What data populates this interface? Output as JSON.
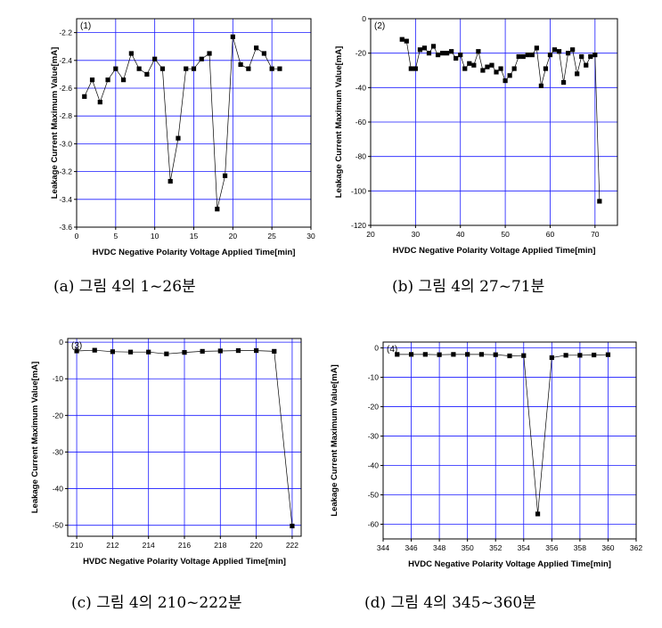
{
  "chart_data": [
    {
      "type": "line",
      "panel_label": "(1)",
      "caption": "(a) 그림 4의 1~26분",
      "xlabel": "HVDC Negative Polarity Voltage Applied Time[min]",
      "ylabel": "Leakage Current Maximum Value[mA]",
      "xlim": [
        0,
        30
      ],
      "ylim": [
        -3.6,
        -2.1
      ],
      "xticks": [
        0,
        5,
        10,
        15,
        20,
        25,
        30
      ],
      "yticks": [
        -3.6,
        -3.4,
        -3.2,
        -3.0,
        -2.8,
        -2.6,
        -2.4,
        -2.2
      ],
      "ytick_labels": [
        "-3.6",
        "-3.4",
        "-3.2",
        "-3.0",
        "-2.8",
        "-2.6",
        "-2.4",
        "-2.2"
      ],
      "x": [
        1,
        2,
        3,
        4,
        5,
        6,
        7,
        8,
        9,
        10,
        11,
        12,
        13,
        14,
        15,
        16,
        17,
        18,
        19,
        20,
        21,
        22,
        23,
        24,
        25,
        26
      ],
      "y": [
        -2.66,
        -2.54,
        -2.7,
        -2.54,
        -2.46,
        -2.54,
        -2.35,
        -2.46,
        -2.5,
        -2.39,
        -2.46,
        -3.27,
        -2.96,
        -2.46,
        -2.46,
        -2.39,
        -2.35,
        -3.47,
        -3.23,
        -2.23,
        -2.43,
        -2.46,
        -2.31,
        -2.35,
        -2.46,
        -2.46
      ],
      "grid": true
    },
    {
      "type": "line",
      "panel_label": "(2)",
      "caption": "(b) 그림 4의 27~71분",
      "xlabel": "HVDC Negative Polarity Voltage Applied Time[min]",
      "ylabel": "Leakage Current Maximum Value[mA]",
      "xlim": [
        20,
        75
      ],
      "ylim": [
        -120,
        0
      ],
      "xticks": [
        20,
        30,
        40,
        50,
        60,
        70
      ],
      "yticks": [
        -120,
        -100,
        -80,
        -60,
        -40,
        -20,
        0
      ],
      "ytick_labels": [
        "-120",
        "-100",
        "-80",
        "-60",
        "-40",
        "-20",
        "0"
      ],
      "x": [
        27,
        28,
        29,
        30,
        31,
        32,
        33,
        34,
        35,
        36,
        37,
        38,
        39,
        40,
        41,
        42,
        43,
        44,
        45,
        46,
        47,
        48,
        49,
        50,
        51,
        52,
        53,
        54,
        55,
        56,
        57,
        58,
        59,
        60,
        61,
        62,
        63,
        64,
        65,
        66,
        67,
        68,
        69,
        70,
        71
      ],
      "y": [
        -12,
        -13,
        -29,
        -29,
        -18,
        -17,
        -20,
        -16,
        -21,
        -20,
        -20,
        -19,
        -23,
        -21,
        -29,
        -26,
        -27,
        -19,
        -30,
        -28,
        -27,
        -31,
        -29,
        -36,
        -33,
        -29,
        -22,
        -22,
        -21,
        -21,
        -17,
        -39,
        -29,
        -21,
        -18,
        -19,
        -37,
        -20,
        -18,
        -32,
        -22,
        -27,
        -22,
        -21,
        -106
      ],
      "grid": true
    },
    {
      "type": "line",
      "panel_label": "(3)",
      "caption": "(c) 그림 4의 210~222분",
      "xlabel": "HVDC Negative Polarity Voltage Applied Time[min]",
      "ylabel": "Leakage Current Maximum Value[mA]",
      "xlim": [
        209.5,
        222.5
      ],
      "ylim": [
        -53,
        1
      ],
      "xticks": [
        210,
        212,
        214,
        216,
        218,
        220,
        222
      ],
      "yticks": [
        -50,
        -40,
        -30,
        -20,
        -10,
        0
      ],
      "ytick_labels": [
        "-50",
        "-40",
        "-30",
        "-20",
        "-10",
        "0"
      ],
      "x": [
        210,
        211,
        212,
        213,
        214,
        215,
        216,
        217,
        218,
        219,
        220,
        221,
        222
      ],
      "y": [
        -2.4,
        -2.2,
        -2.6,
        -2.7,
        -2.7,
        -3.2,
        -2.8,
        -2.5,
        -2.4,
        -2.3,
        -2.3,
        -2.5,
        -50.2
      ],
      "grid": true
    },
    {
      "type": "line",
      "panel_label": "(4)",
      "caption": "(d) 그림 4의 345~360분",
      "xlabel": "HVDC Negative Polarity Voltage Applied Time[min]",
      "ylabel": "Leakage Current Maximum Value[mA]",
      "xlim": [
        344,
        362
      ],
      "ylim": [
        -65,
        2
      ],
      "xticks": [
        344,
        346,
        348,
        350,
        352,
        354,
        356,
        358,
        360,
        362
      ],
      "yticks": [
        -60,
        -50,
        -40,
        -30,
        -20,
        -10,
        0
      ],
      "ytick_labels": [
        "-60",
        "-50",
        "-40",
        "-30",
        "-20",
        "-10",
        "0"
      ],
      "x": [
        345,
        346,
        347,
        348,
        349,
        350,
        351,
        352,
        353,
        354,
        355,
        356,
        357,
        358,
        359,
        360
      ],
      "y": [
        -2.2,
        -2.2,
        -2.2,
        -2.3,
        -2.2,
        -2.2,
        -2.2,
        -2.3,
        -2.7,
        -2.6,
        -56.5,
        -3.3,
        -2.5,
        -2.5,
        -2.4,
        -2.3
      ],
      "grid": true
    }
  ],
  "colors": {
    "grid": "#1a1aff",
    "line": "#000000",
    "marker": "#000000",
    "frame": "#000000"
  }
}
